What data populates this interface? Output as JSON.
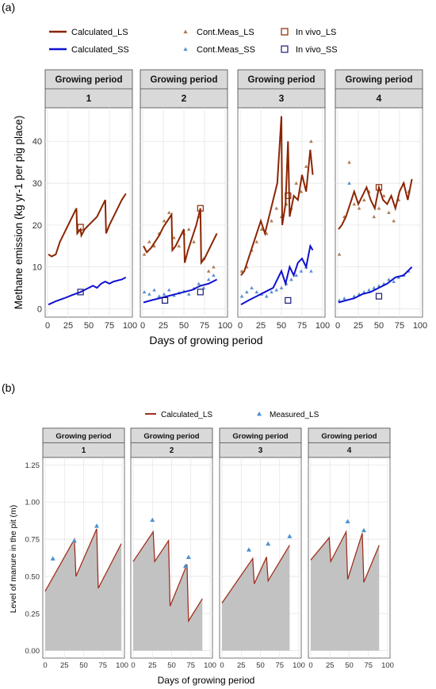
{
  "panel_labels": {
    "a": "(a)",
    "b": "(b)"
  },
  "chart_data": [
    {
      "type": "line",
      "facet_title": "Growing period",
      "facets": [
        "1",
        "2",
        "3",
        "4"
      ],
      "xlabel": "Days of growing period",
      "ylabel": "Methane emission (kg yr-1 per pig place)",
      "xlim": [
        0,
        100
      ],
      "ylim": [
        -2,
        48
      ],
      "xticks": [
        0,
        25,
        50,
        75,
        100
      ],
      "yticks": [
        0,
        10,
        20,
        30,
        40
      ],
      "grid": true,
      "legend": {
        "placement": "top",
        "entries": [
          {
            "label": "Calculated_LS",
            "kind": "line",
            "color": "#8B2500"
          },
          {
            "label": "Cont.Meas_LS",
            "kind": "triangle",
            "color": "#B07A50"
          },
          {
            "label": "In vivo_LS",
            "kind": "square",
            "color": "#8B2500"
          },
          {
            "label": "Calculated_SS",
            "kind": "line",
            "color": "#1010D0"
          },
          {
            "label": "Cont.Meas_SS",
            "kind": "triangle",
            "color": "#5B8FD0"
          },
          {
            "label": "In vivo_SS",
            "kind": "square",
            "color": "#1A1A7A"
          }
        ]
      },
      "panels": [
        {
          "facet": "1",
          "calc_ls": {
            "x": [
              1,
              5,
              10,
              15,
              20,
              25,
              30,
              35,
              36,
              40,
              41,
              45,
              50,
              55,
              60,
              65,
              70,
              71,
              75,
              80,
              85,
              90,
              95
            ],
            "y": [
              13,
              12.5,
              13,
              16,
              18,
              20,
              22,
              24,
              18,
              19,
              17.5,
              19,
              20,
              21,
              22,
              24,
              26,
              18,
              20,
              22,
              24,
              26,
              27.5
            ]
          },
          "calc_ss": {
            "x": [
              1,
              10,
              20,
              30,
              40,
              50,
              55,
              60,
              65,
              70,
              75,
              80,
              90,
              95
            ],
            "y": [
              1,
              1.8,
              2.5,
              3.3,
              4,
              5,
              5.5,
              5,
              6,
              6.5,
              6,
              6.5,
              7,
              7.5
            ]
          },
          "meas_ls": {
            "x": [],
            "y": []
          },
          "meas_ss": {
            "x": [],
            "y": []
          },
          "invivo_ls": {
            "x": [
              40
            ],
            "y": [
              19.5
            ]
          },
          "invivo_ss": {
            "x": [
              40
            ],
            "y": [
              4
            ]
          }
        },
        {
          "facet": "2",
          "calc_ls": {
            "x": [
              1,
              5,
              10,
              15,
              20,
              25,
              30,
              35,
              36,
              40,
              45,
              50,
              51,
              55,
              60,
              65,
              70,
              71,
              75,
              80,
              85,
              90
            ],
            "y": [
              15,
              13.5,
              14.5,
              16,
              17.5,
              19.5,
              21,
              22.5,
              14,
              15,
              17,
              19,
              11,
              14,
              17,
              20,
              24,
              11,
              12,
              14,
              16,
              18
            ]
          },
          "calc_ss": {
            "x": [
              1,
              10,
              20,
              30,
              40,
              50,
              60,
              70,
              80,
              90
            ],
            "y": [
              1.5,
              2,
              2.5,
              3,
              3.5,
              4,
              4.5,
              5.5,
              6,
              7
            ]
          },
          "meas_ls": {
            "x": [
              2,
              8,
              14,
              20,
              26,
              32,
              38,
              44,
              50,
              56,
              62,
              68,
              74,
              80,
              86
            ],
            "y": [
              13,
              16,
              15,
              18,
              21,
              23,
              17,
              15,
              18,
              19,
              16,
              22,
              12,
              9,
              10
            ]
          },
          "meas_ss": {
            "x": [
              2,
              8,
              14,
              20,
              26,
              32,
              38,
              44,
              50,
              56,
              62,
              68,
              74,
              80,
              86
            ],
            "y": [
              4,
              3.5,
              4.5,
              3,
              3.5,
              4.5,
              3.2,
              3.8,
              4.2,
              3.5,
              4.8,
              6,
              5,
              7,
              8
            ]
          },
          "invivo_ls": {
            "x": [
              70
            ],
            "y": [
              24
            ]
          },
          "invivo_ss": {
            "x": [
              27,
              70
            ],
            "y": [
              2,
              4
            ]
          }
        },
        {
          "facet": "3",
          "calc_ls": {
            "x": [
              1,
              5,
              10,
              15,
              20,
              25,
              30,
              35,
              40,
              45,
              50,
              51,
              55,
              58,
              60,
              65,
              70,
              75,
              80,
              85,
              88
            ],
            "y": [
              8,
              9,
              12,
              15,
              18,
              21,
              18,
              22,
              26,
              30,
              46,
              20,
              25,
              40,
              22,
              27,
              26,
              32,
              28,
              38,
              32
            ]
          },
          "calc_ss": {
            "x": [
              1,
              10,
              20,
              30,
              40,
              45,
              50,
              55,
              60,
              65,
              70,
              75,
              80,
              85,
              88
            ],
            "y": [
              1,
              2,
              3,
              4,
              5,
              7,
              9,
              6,
              10,
              8,
              11,
              12,
              10,
              15,
              14
            ]
          },
          "meas_ls": {
            "x": [
              2,
              8,
              14,
              20,
              26,
              32,
              38,
              44,
              50,
              56,
              62,
              68,
              74,
              80,
              86
            ],
            "y": [
              9,
              10,
              14,
              16,
              19,
              18,
              21,
              24,
              22,
              25,
              24,
              30,
              28,
              34,
              40
            ]
          },
          "meas_ss": {
            "x": [
              2,
              8,
              14,
              20,
              26,
              32,
              38,
              44,
              50,
              56,
              62,
              68,
              74,
              80,
              86
            ],
            "y": [
              3,
              4,
              5,
              4,
              3.5,
              3,
              4,
              4.5,
              5,
              6,
              7,
              8,
              9,
              10,
              9
            ]
          },
          "invivo_ls": {
            "x": [
              58
            ],
            "y": [
              27
            ]
          },
          "invivo_ss": {
            "x": [
              58
            ],
            "y": [
              2
            ]
          }
        },
        {
          "facet": "4",
          "calc_ls": {
            "x": [
              1,
              5,
              10,
              15,
              20,
              25,
              30,
              35,
              40,
              45,
              50,
              55,
              60,
              65,
              70,
              75,
              80,
              85,
              90
            ],
            "y": [
              19,
              20,
              22,
              25,
              28,
              25,
              27,
              29,
              26,
              24,
              29,
              26,
              25,
              27,
              24,
              28,
              30,
              26,
              31
            ]
          },
          "calc_ss": {
            "x": [
              1,
              10,
              20,
              30,
              40,
              50,
              60,
              70,
              80,
              90
            ],
            "y": [
              1.5,
              2,
              2.5,
              3.5,
              4,
              5,
              6,
              7.5,
              8,
              10
            ]
          },
          "meas_ls": {
            "x": [
              2,
              8,
              14,
              20,
              26,
              32,
              38,
              44,
              50,
              56,
              62,
              68,
              74,
              80,
              86
            ],
            "y": [
              13,
              22,
              35,
              25,
              24,
              26,
              28,
              22,
              24,
              27,
              23,
              21,
              26,
              30,
              28
            ]
          },
          "meas_ss": {
            "x": [
              2,
              8,
              14,
              20,
              26,
              32,
              38,
              44,
              50,
              56,
              62,
              68,
              74,
              80,
              86
            ],
            "y": [
              2,
              2.5,
              30,
              3,
              3.5,
              4,
              4.5,
              5,
              5.5,
              6,
              7,
              6.5,
              7.5,
              8,
              9
            ]
          },
          "invivo_ls": {
            "x": [
              50
            ],
            "y": [
              29
            ]
          },
          "invivo_ss": {
            "x": [
              50
            ],
            "y": [
              3
            ]
          }
        }
      ]
    },
    {
      "type": "area",
      "facet_title": "Growing period",
      "facets": [
        "1",
        "2",
        "3",
        "4"
      ],
      "xlabel": "Days of growing period",
      "ylabel": "Level of manure in the pit (m)",
      "xlim": [
        0,
        100
      ],
      "ylim": [
        -0.05,
        1.3
      ],
      "xticks": [
        0,
        25,
        50,
        75,
        100
      ],
      "yticks": [
        0.0,
        0.25,
        0.5,
        0.75,
        1.0,
        1.25
      ],
      "ytick_labels": [
        "0.00",
        "0.25",
        "0.50",
        "0.75",
        "1.00",
        "1.25"
      ],
      "grid": true,
      "legend": {
        "placement": "top",
        "entries": [
          {
            "label": "Calculated_LS",
            "kind": "line",
            "color": "#A0301E"
          },
          {
            "label": "Measured_LS",
            "kind": "triangle",
            "color": "#4A90D0"
          }
        ]
      },
      "panels": [
        {
          "facet": "1",
          "calc": {
            "x": [
              0,
              38,
              40,
              67,
              69,
              99
            ],
            "y": [
              0.4,
              0.75,
              0.5,
              0.82,
              0.42,
              0.72
            ]
          },
          "meas": {
            "x": [
              10,
              38,
              67
            ],
            "y": [
              0.62,
              0.74,
              0.84
            ]
          }
        },
        {
          "facet": "2",
          "calc": {
            "x": [
              0,
              26,
              28,
              46,
              48,
              70,
              72,
              90
            ],
            "y": [
              0.6,
              0.8,
              0.6,
              0.74,
              0.3,
              0.58,
              0.2,
              0.35
            ]
          },
          "meas": {
            "x": [
              25,
              68,
              72
            ],
            "y": [
              0.88,
              0.57,
              0.63
            ]
          }
        },
        {
          "facet": "3",
          "calc": {
            "x": [
              0,
              40,
              42,
              58,
              60,
              88
            ],
            "y": [
              0.32,
              0.62,
              0.45,
              0.63,
              0.47,
              0.71
            ]
          },
          "meas": {
            "x": [
              35,
              60,
              88
            ],
            "y": [
              0.68,
              0.72,
              0.77
            ]
          }
        },
        {
          "facet": "4",
          "calc": {
            "x": [
              0,
              24,
              26,
              46,
              48,
              67,
              69,
              89
            ],
            "y": [
              0.61,
              0.76,
              0.6,
              0.8,
              0.48,
              0.79,
              0.46,
              0.71
            ]
          },
          "meas": {
            "x": [
              48,
              69
            ],
            "y": [
              0.87,
              0.81
            ]
          }
        }
      ]
    }
  ]
}
